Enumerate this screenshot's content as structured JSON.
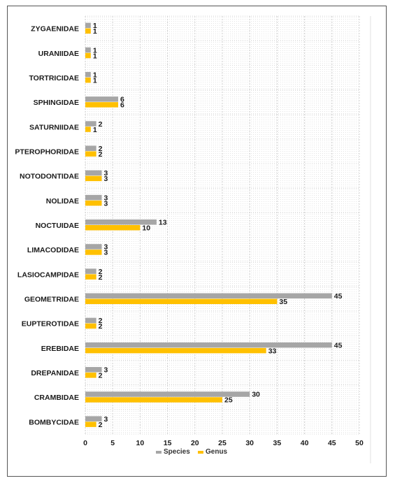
{
  "chart_data": {
    "type": "bar",
    "orientation": "horizontal",
    "categories": [
      "ZYGAENIDAE",
      "URANIIDAE",
      "TORTRICIDAE",
      "SPHINGIDAE",
      "SATURNIIDAE",
      "PTEROPHORIDAE",
      "NOTODONTIDAE",
      "NOLIDAE",
      "NOCTUIDAE",
      "LIMACODIDAE",
      "LASIOCAMPIDAE",
      "GEOMETRIDAE",
      "EUPTEROTIDAE",
      "EREBIDAE",
      "DREPANIDAE",
      "CRAMBIDAE",
      "BOMBYCIDAE"
    ],
    "series": [
      {
        "name": "Species",
        "color": "#a6a6a6",
        "values": [
          1,
          1,
          1,
          6,
          2,
          2,
          3,
          3,
          13,
          3,
          2,
          45,
          2,
          45,
          3,
          30,
          3
        ]
      },
      {
        "name": "Genus",
        "color": "#ffc000",
        "values": [
          1,
          1,
          1,
          6,
          1,
          2,
          3,
          3,
          10,
          3,
          2,
          35,
          2,
          33,
          2,
          25,
          2
        ]
      }
    ],
    "xlim": [
      0,
      50
    ],
    "x_ticks": [
      0,
      5,
      10,
      15,
      20,
      25,
      30,
      35,
      40,
      45,
      50
    ],
    "grid": "vertical-dotted",
    "legend_position": "bottom",
    "data_labels": true
  }
}
